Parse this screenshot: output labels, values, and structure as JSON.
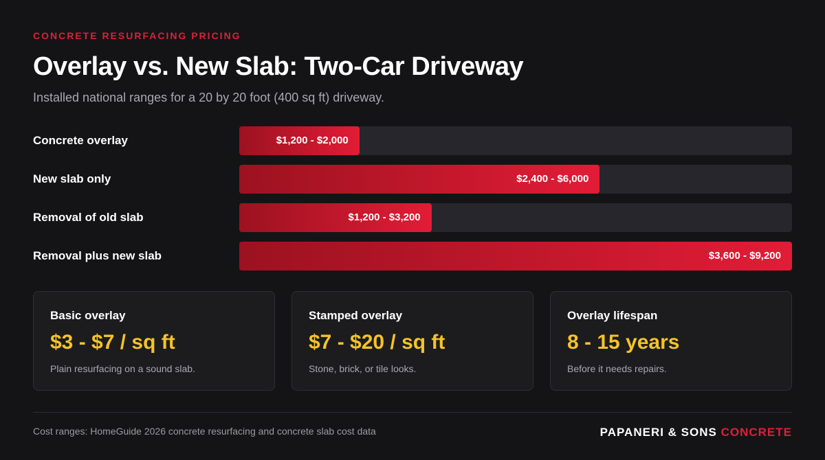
{
  "header": {
    "eyebrow": "CONCRETE RESURFACING PRICING",
    "title": "Overlay vs. New Slab: Two-Car Driveway",
    "subtitle": "Installed national ranges for a 20 by 20 foot (400 sq ft) driveway."
  },
  "chart_data": {
    "type": "bar",
    "orientation": "horizontal",
    "categories": [
      "Concrete overlay",
      "New slab only",
      "Removal of old slab",
      "Removal plus new slab"
    ],
    "values": [
      2000,
      6000,
      3200,
      9200
    ],
    "value_labels": [
      "$1,200 - $2,000",
      "$2,400 - $6,000",
      "$1,200 - $3,200",
      "$3,600 - $9,200"
    ],
    "xlim": [
      0,
      9200
    ],
    "colors": [
      "#9c1220",
      "#e21c36"
    ]
  },
  "cards": [
    {
      "title": "Basic overlay",
      "value": "$3 - $7 / sq ft",
      "note": "Plain resurfacing on a sound slab."
    },
    {
      "title": "Stamped overlay",
      "value": "$7 - $20 / sq ft",
      "note": "Stone, brick, or tile looks."
    },
    {
      "title": "Overlay lifespan",
      "value": "8 - 15 years",
      "note": "Before it needs repairs."
    }
  ],
  "footer": {
    "source": "Cost ranges: HomeGuide 2026 concrete resurfacing and concrete slab cost data",
    "brand": "PAPANERI & SONS",
    "brand_accent": "CONCRETE"
  }
}
